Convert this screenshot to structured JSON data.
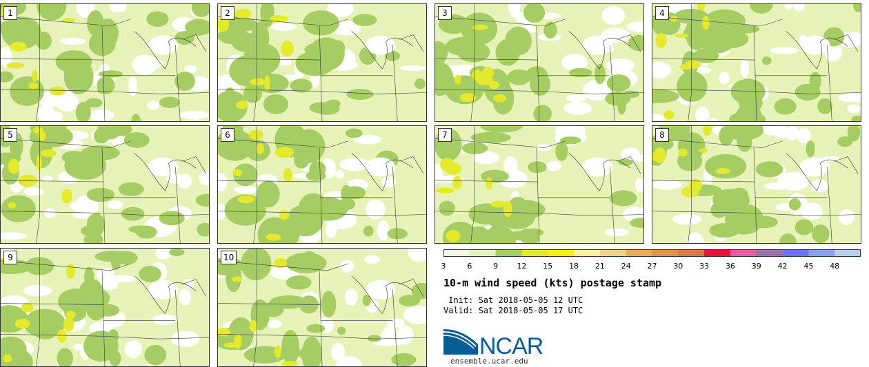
{
  "panels": [
    {
      "label": "1"
    },
    {
      "label": "2"
    },
    {
      "label": "3"
    },
    {
      "label": "4"
    },
    {
      "label": "5"
    },
    {
      "label": "6"
    },
    {
      "label": "7"
    },
    {
      "label": "8"
    },
    {
      "label": "9"
    },
    {
      "label": "10"
    }
  ],
  "colorbar": {
    "ticks": [
      "3",
      "6",
      "9",
      "12",
      "15",
      "18",
      "21",
      "24",
      "27",
      "30",
      "33",
      "36",
      "39",
      "42",
      "45",
      "48"
    ],
    "colors": [
      "#f4f9e6",
      "#e4f3b9",
      "#a6cd63",
      "#e4ea2b",
      "#fcef14",
      "#fdf39d",
      "#f6d384",
      "#eda958",
      "#e39243",
      "#d97841",
      "#ec0e3b",
      "#e85ca2",
      "#9c6fa5",
      "#6c74f1",
      "#8b9ef6",
      "#b9cbf7"
    ]
  },
  "title": "10-m wind speed (kts) postage stamp",
  "init": " Init: Sat 2018-05-05 12 UTC",
  "valid": "Valid: Sat 2018-05-05 17 UTC",
  "logo": {
    "text": "NCAR",
    "url": "ensemble.ucar.edu",
    "brand_color": "#0a5c96"
  },
  "map_colors": {
    "calm": "#ffffff",
    "light": "#e6f2b8",
    "moderate": "#a6cd63",
    "fresh": "#e4ea2b",
    "boundary": "#333333"
  }
}
